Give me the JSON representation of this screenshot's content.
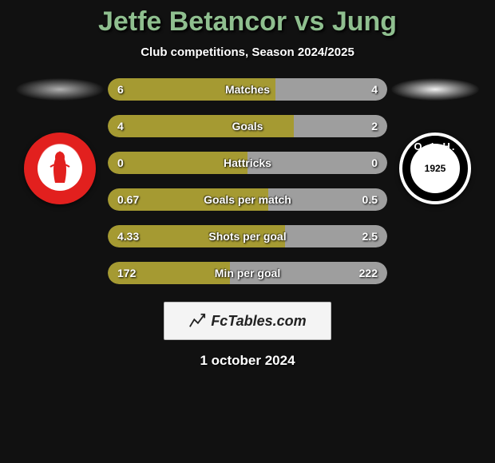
{
  "title": {
    "text": "Jetfe Betancor vs Jung",
    "color": "#8fbf8f"
  },
  "subtitle": "Club competitions, Season 2024/2025",
  "date": "1 october 2024",
  "brand": "FcTables.com",
  "sides": {
    "left": {
      "ellipse_color": "#b0b0b0",
      "bar_color": "#a59a32"
    },
    "right": {
      "ellipse_color": "#f0f0f0",
      "bar_color": "#9e9e9e"
    }
  },
  "stats": [
    {
      "label": "Matches",
      "left_val": "6",
      "right_val": "4",
      "left_pct": 60,
      "right_pct": 40
    },
    {
      "label": "Goals",
      "left_val": "4",
      "right_val": "2",
      "left_pct": 66.7,
      "right_pct": 33.3
    },
    {
      "label": "Hattricks",
      "left_val": "0",
      "right_val": "0",
      "left_pct": 50,
      "right_pct": 50
    },
    {
      "label": "Goals per match",
      "left_val": "0.67",
      "right_val": "0.5",
      "left_pct": 57.3,
      "right_pct": 42.7
    },
    {
      "label": "Shots per goal",
      "left_val": "4.33",
      "right_val": "2.5",
      "left_pct": 63.4,
      "right_pct": 36.6
    },
    {
      "label": "Min per goal",
      "left_val": "172",
      "right_val": "222",
      "left_pct": 43.7,
      "right_pct": 56.3
    }
  ],
  "badge_right_year": "1925",
  "badge_right_text": "Ο.Φ.Η."
}
